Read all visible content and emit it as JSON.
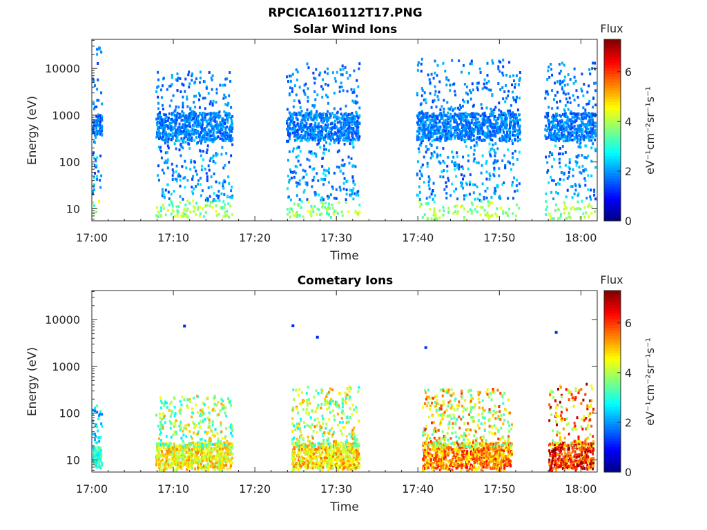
{
  "figure": {
    "title": "RPCICA160112T17.PNG"
  },
  "chart_data": [
    {
      "type": "heatmap",
      "title": "Solar Wind Ions",
      "xlabel": "Time",
      "ylabel": "Energy (eV)",
      "x_ticks": [
        "17:00",
        "17:10",
        "17:20",
        "17:30",
        "17:40",
        "17:50",
        "18:00"
      ],
      "y_ticks": [
        "10",
        "100",
        "1000",
        "10000"
      ],
      "y_scale": "log",
      "y_range": [
        5.5,
        42000
      ],
      "x_range_min": [
        0,
        62
      ],
      "colorbar": {
        "title": "Flux",
        "label": "eV⁻¹cm⁻²sr⁻¹s⁻¹",
        "ticks": [
          "0",
          "2",
          "4",
          "6"
        ],
        "range": [
          0,
          7.3
        ],
        "colormap": "jet"
      },
      "bursts": [
        {
          "t0": 0.0,
          "t1": 1.2,
          "emin": 8,
          "emax": 35000,
          "core": [
            400,
            1100
          ],
          "level": 2.4
        },
        {
          "t0": 7.8,
          "t1": 17.2,
          "emin": 7,
          "emax": 9000,
          "core": [
            300,
            1200
          ],
          "level": 2.3
        },
        {
          "t0": 23.8,
          "t1": 32.8,
          "emin": 7,
          "emax": 14000,
          "core": [
            300,
            1200
          ],
          "level": 2.3
        },
        {
          "t0": 39.8,
          "t1": 52.5,
          "emin": 6,
          "emax": 17000,
          "core": [
            300,
            1200
          ],
          "level": 2.3
        },
        {
          "t0": 55.5,
          "t1": 62.0,
          "emin": 6,
          "emax": 14000,
          "core": [
            300,
            1200
          ],
          "level": 2.3
        }
      ]
    },
    {
      "type": "heatmap",
      "title": "Cometary Ions",
      "xlabel": "Time",
      "ylabel": "Energy (eV)",
      "x_ticks": [
        "17:00",
        "17:10",
        "17:20",
        "17:30",
        "17:40",
        "17:50",
        "18:00"
      ],
      "y_ticks": [
        "10",
        "100",
        "1000",
        "10000"
      ],
      "y_scale": "log",
      "y_range": [
        5.5,
        42000
      ],
      "x_range_min": [
        0,
        62
      ],
      "colorbar": {
        "title": "Flux",
        "label": "eV⁻¹cm⁻²sr⁻¹s⁻¹",
        "ticks": [
          "0",
          "2",
          "4",
          "6"
        ],
        "range": [
          0,
          7.3
        ],
        "colormap": "jet"
      },
      "bursts": [
        {
          "t0": 0.0,
          "t1": 1.2,
          "emin": 7,
          "emax": 180,
          "core": [
            8,
            20
          ],
          "level": 3.0
        },
        {
          "t0": 7.8,
          "t1": 17.2,
          "emin": 6,
          "emax": 250,
          "core": [
            7,
            25
          ],
          "level": 4.6
        },
        {
          "t0": 24.5,
          "t1": 32.8,
          "emin": 6,
          "emax": 400,
          "core": [
            7,
            25
          ],
          "level": 4.8
        },
        {
          "t0": 40.5,
          "t1": 51.5,
          "emin": 6,
          "emax": 350,
          "core": [
            7,
            25
          ],
          "level": 5.4
        },
        {
          "t0": 56.0,
          "t1": 61.5,
          "emin": 6,
          "emax": 450,
          "core": [
            7,
            25
          ],
          "level": 6.2
        }
      ],
      "isolated_points": [
        {
          "t": 11.2,
          "e": 7800
        },
        {
          "t": 24.5,
          "e": 7900
        },
        {
          "t": 27.5,
          "e": 4500
        },
        {
          "t": 40.8,
          "e": 2700
        },
        {
          "t": 56.8,
          "e": 5700
        }
      ]
    }
  ]
}
